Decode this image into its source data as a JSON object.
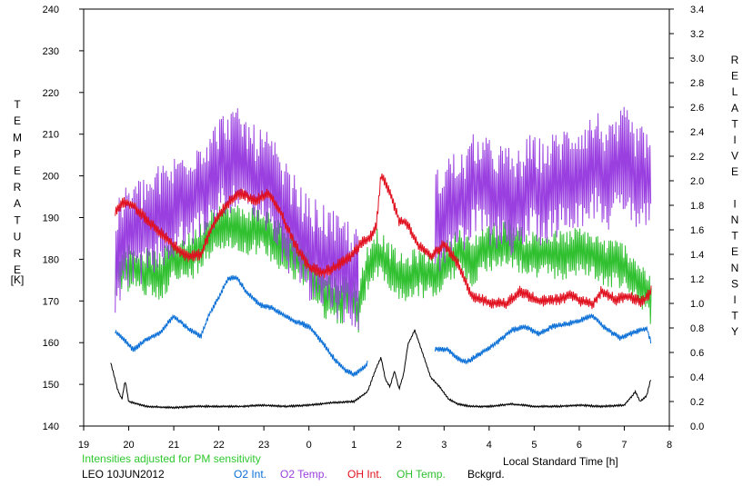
{
  "chart_data": {
    "type": "line",
    "title": "",
    "xlabel": "Local Standard Time [h]",
    "ylabel_left_letters": [
      "T",
      "E",
      "M",
      "P",
      "E",
      "R",
      "A",
      "T",
      "U",
      "R",
      "E"
    ],
    "ylabel_left_unit": "[K]",
    "ylabel_right_words": [
      [
        "R",
        "E",
        "L",
        "A",
        "T",
        "I",
        "V",
        "E"
      ],
      [
        "I",
        "N",
        "T",
        "E",
        "N",
        "S",
        "I",
        "T",
        "Y"
      ]
    ],
    "note": "Intensities adjusted for PM sensitivity",
    "caption": "LEO 10JUN2012",
    "x_ticks": [
      "19",
      "20",
      "21",
      "22",
      "23",
      "0",
      "1",
      "2",
      "3",
      "4",
      "5",
      "6",
      "7",
      "8"
    ],
    "xlim": [
      19,
      32
    ],
    "ylim_left": [
      140,
      240
    ],
    "ylim_right": [
      0.0,
      3.4
    ],
    "yticks_left": [
      "140",
      "150",
      "160",
      "170",
      "180",
      "190",
      "200",
      "210",
      "220",
      "230",
      "240"
    ],
    "yticks_right": [
      "0.0",
      "0.2",
      "0.4",
      "0.6",
      "0.8",
      "1.0",
      "1.2",
      "1.4",
      "1.6",
      "1.8",
      "2.0",
      "2.2",
      "2.4",
      "2.6",
      "2.8",
      "3.0",
      "3.2",
      "3.4"
    ],
    "grid": false,
    "series": [
      {
        "name": "O2 Int.",
        "color": "#0a6fd6",
        "axis": "right",
        "amp": 0.025,
        "segments": [
          [
            [
              19.7,
              0.77
            ],
            [
              19.9,
              0.7
            ],
            [
              20.1,
              0.62
            ],
            [
              20.4,
              0.71
            ],
            [
              20.7,
              0.76
            ],
            [
              21.0,
              0.9
            ],
            [
              21.3,
              0.8
            ],
            [
              21.6,
              0.73
            ],
            [
              21.8,
              0.92
            ],
            [
              22.0,
              1.05
            ],
            [
              22.2,
              1.2
            ],
            [
              22.4,
              1.21
            ],
            [
              22.6,
              1.1
            ],
            [
              22.9,
              0.99
            ],
            [
              23.2,
              0.96
            ],
            [
              23.6,
              0.87
            ],
            [
              24.0,
              0.81
            ],
            [
              24.3,
              0.68
            ],
            [
              24.6,
              0.53
            ],
            [
              24.8,
              0.46
            ],
            [
              25.0,
              0.42
            ],
            [
              25.2,
              0.47
            ],
            [
              25.3,
              0.51
            ]
          ],
          [
            [
              26.8,
              0.63
            ],
            [
              27.1,
              0.62
            ],
            [
              27.3,
              0.55
            ],
            [
              27.5,
              0.52
            ],
            [
              27.8,
              0.59
            ],
            [
              28.2,
              0.69
            ],
            [
              28.5,
              0.78
            ],
            [
              28.8,
              0.81
            ],
            [
              29.1,
              0.75
            ],
            [
              29.4,
              0.81
            ],
            [
              29.7,
              0.83
            ],
            [
              30.0,
              0.86
            ],
            [
              30.3,
              0.9
            ],
            [
              30.6,
              0.79
            ],
            [
              30.9,
              0.72
            ],
            [
              31.2,
              0.76
            ],
            [
              31.5,
              0.8
            ],
            [
              31.6,
              0.67
            ]
          ]
        ]
      },
      {
        "name": "O2 Temp.",
        "color": "#9a40e0",
        "axis": "left",
        "amp": 13,
        "segments": [
          [
            [
              19.7,
              180
            ],
            [
              20.0,
              186
            ],
            [
              20.3,
              187
            ],
            [
              20.7,
              190
            ],
            [
              21.0,
              192
            ],
            [
              21.3,
              195
            ],
            [
              21.6,
              197
            ],
            [
              21.9,
              200
            ],
            [
              22.2,
              204
            ],
            [
              22.5,
              203
            ],
            [
              22.8,
              199
            ],
            [
              23.1,
              198
            ],
            [
              23.4,
              192
            ],
            [
              23.7,
              187
            ],
            [
              24.0,
              182
            ],
            [
              24.3,
              181
            ],
            [
              24.6,
              178
            ],
            [
              24.9,
              177
            ],
            [
              25.1,
              174
            ]
          ],
          [
            [
              26.8,
              188
            ],
            [
              27.1,
              193
            ],
            [
              27.4,
              193
            ],
            [
              27.7,
              198
            ],
            [
              28.0,
              196
            ],
            [
              28.3,
              195
            ],
            [
              28.6,
              193
            ],
            [
              28.9,
              197
            ],
            [
              29.2,
              196
            ],
            [
              29.5,
              198
            ],
            [
              29.8,
              200
            ],
            [
              30.1,
              201
            ],
            [
              30.4,
              203
            ],
            [
              30.7,
              199
            ],
            [
              31.0,
              204
            ],
            [
              31.3,
              199
            ],
            [
              31.6,
              199
            ]
          ]
        ]
      },
      {
        "name": "OH Int.",
        "color": "#e0101e",
        "axis": "right",
        "amp": 0.05,
        "segments": [
          [
            [
              19.7,
              1.76
            ],
            [
              19.9,
              1.83
            ],
            [
              20.1,
              1.8
            ],
            [
              20.4,
              1.68
            ],
            [
              20.7,
              1.58
            ],
            [
              21.0,
              1.47
            ],
            [
              21.3,
              1.38
            ],
            [
              21.6,
              1.4
            ],
            [
              21.9,
              1.66
            ],
            [
              22.2,
              1.82
            ],
            [
              22.5,
              1.9
            ],
            [
              22.8,
              1.84
            ],
            [
              23.1,
              1.9
            ],
            [
              23.4,
              1.72
            ],
            [
              23.7,
              1.47
            ],
            [
              24.0,
              1.3
            ],
            [
              24.3,
              1.25
            ],
            [
              24.6,
              1.3
            ],
            [
              24.9,
              1.37
            ],
            [
              25.2,
              1.51
            ],
            [
              25.4,
              1.55
            ],
            [
              25.5,
              1.64
            ],
            [
              25.6,
              2.05
            ],
            [
              25.8,
              1.9
            ],
            [
              26.0,
              1.68
            ],
            [
              26.2,
              1.65
            ],
            [
              26.4,
              1.49
            ],
            [
              26.7,
              1.38
            ],
            [
              27.0,
              1.48
            ],
            [
              27.3,
              1.33
            ],
            [
              27.6,
              1.06
            ],
            [
              28.0,
              1.01
            ],
            [
              28.4,
              1.0
            ],
            [
              28.7,
              1.1
            ],
            [
              29.1,
              1.02
            ],
            [
              29.5,
              1.03
            ],
            [
              29.8,
              1.06
            ],
            [
              30.1,
              1.01
            ],
            [
              30.3,
              1.0
            ],
            [
              30.5,
              1.1
            ],
            [
              30.8,
              1.03
            ],
            [
              31.1,
              1.06
            ],
            [
              31.4,
              1.01
            ],
            [
              31.6,
              1.1
            ]
          ]
        ]
      },
      {
        "name": "OH Temp.",
        "color": "#30c030",
        "axis": "left",
        "amp": 6,
        "segments": [
          [
            [
              19.7,
              177
            ],
            [
              20.0,
              178
            ],
            [
              20.3,
              177
            ],
            [
              20.7,
              176
            ],
            [
              21.0,
              180
            ],
            [
              21.3,
              180
            ],
            [
              21.6,
              183
            ],
            [
              21.9,
              188
            ],
            [
              22.2,
              188
            ],
            [
              22.5,
              187
            ],
            [
              22.8,
              187
            ],
            [
              23.1,
              186
            ],
            [
              23.4,
              183
            ],
            [
              23.7,
              180
            ],
            [
              24.0,
              178
            ],
            [
              24.3,
              172
            ],
            [
              24.6,
              170
            ],
            [
              24.9,
              171
            ],
            [
              25.1,
              168
            ],
            [
              25.3,
              178
            ],
            [
              25.5,
              182
            ],
            [
              25.8,
              178
            ],
            [
              26.1,
              175
            ],
            [
              26.4,
              177
            ],
            [
              26.7,
              176
            ],
            [
              27.0,
              178
            ],
            [
              27.3,
              182
            ],
            [
              27.6,
              179
            ],
            [
              27.9,
              183
            ],
            [
              28.2,
              183
            ],
            [
              28.5,
              184
            ],
            [
              28.8,
              181
            ],
            [
              29.1,
              181
            ],
            [
              29.4,
              181
            ],
            [
              29.7,
              181
            ],
            [
              30.0,
              182
            ],
            [
              30.3,
              181
            ],
            [
              30.6,
              179
            ],
            [
              30.9,
              179
            ],
            [
              31.2,
              176
            ],
            [
              31.5,
              172
            ],
            [
              31.6,
              170
            ]
          ]
        ]
      },
      {
        "name": "Bckgrd.",
        "color": "#000000",
        "axis": "right",
        "amp": 0.008,
        "segments": [
          [
            [
              19.6,
              0.52
            ],
            [
              19.75,
              0.3
            ],
            [
              19.85,
              0.22
            ],
            [
              19.92,
              0.37
            ],
            [
              20.0,
              0.2
            ],
            [
              20.4,
              0.16
            ],
            [
              21.0,
              0.15
            ],
            [
              21.5,
              0.16
            ],
            [
              22.0,
              0.16
            ],
            [
              22.5,
              0.16
            ],
            [
              23.0,
              0.17
            ],
            [
              23.5,
              0.16
            ],
            [
              24.0,
              0.17
            ],
            [
              24.5,
              0.19
            ],
            [
              25.0,
              0.2
            ],
            [
              25.3,
              0.28
            ],
            [
              25.5,
              0.48
            ],
            [
              25.6,
              0.56
            ],
            [
              25.7,
              0.38
            ],
            [
              25.8,
              0.32
            ],
            [
              25.9,
              0.45
            ],
            [
              26.0,
              0.3
            ],
            [
              26.1,
              0.42
            ],
            [
              26.2,
              0.67
            ],
            [
              26.35,
              0.78
            ],
            [
              26.5,
              0.62
            ],
            [
              26.7,
              0.4
            ],
            [
              26.9,
              0.32
            ],
            [
              27.1,
              0.22
            ],
            [
              27.3,
              0.18
            ],
            [
              27.6,
              0.16
            ],
            [
              28.0,
              0.16
            ],
            [
              28.5,
              0.18
            ],
            [
              29.0,
              0.16
            ],
            [
              29.5,
              0.16
            ],
            [
              30.0,
              0.17
            ],
            [
              30.5,
              0.16
            ],
            [
              31.0,
              0.17
            ],
            [
              31.25,
              0.28
            ],
            [
              31.35,
              0.2
            ],
            [
              31.5,
              0.25
            ],
            [
              31.6,
              0.4
            ]
          ]
        ]
      }
    ]
  }
}
